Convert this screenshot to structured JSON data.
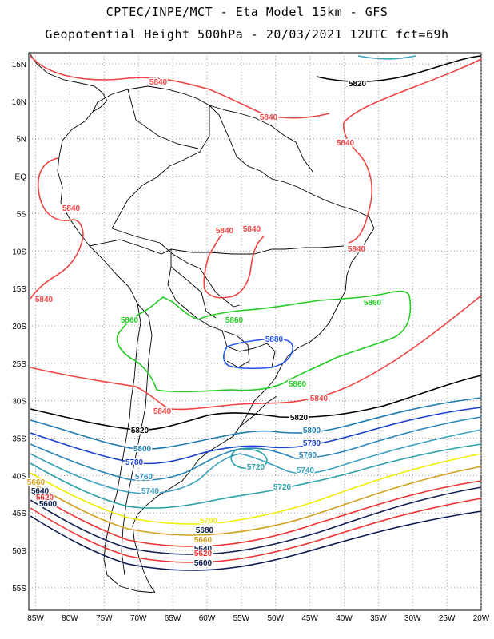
{
  "header": {
    "line1": "CPTEC/INPE/MCT -  Eta Model 15km - GFS",
    "line2": "Geopotential Height 500hPa - 20/03/2021 12UTC fct=69h"
  },
  "axes": {
    "lat_labels": [
      "15N",
      "10N",
      "5N",
      "EQ",
      "5S",
      "10S",
      "15S",
      "20S",
      "25S",
      "30S",
      "35S",
      "40S",
      "45S",
      "50S",
      "55S"
    ],
    "lat_values": [
      15,
      10,
      5,
      0,
      -5,
      -10,
      -15,
      -20,
      -25,
      -30,
      -35,
      -40,
      -45,
      -50,
      -55
    ],
    "lon_labels": [
      "85W",
      "80W",
      "75W",
      "70W",
      "65W",
      "60W",
      "55W",
      "50W",
      "45W",
      "40W",
      "35W",
      "30W",
      "25W",
      "20W"
    ],
    "lon_values": [
      -85,
      -80,
      -75,
      -70,
      -65,
      -60,
      -55,
      -50,
      -45,
      -40,
      -35,
      -30,
      -25,
      -20
    ],
    "grid": true
  },
  "colors": {
    "c5880": "#2255ee",
    "c5860": "#22cc22",
    "c5840": "#ee4444",
    "c5820": "#000000",
    "c5800": "#1e7ab0",
    "c5780": "#1a3fcc",
    "c5760": "#2a86b8",
    "c5740": "#3aa0c0",
    "c5720": "#2aa0a8",
    "c5700": "#eeee00",
    "c5680": "#d4a020",
    "c5660": "#ee3333",
    "c5640": "#112255",
    "c5620": "#ee3333",
    "c5600": "#0a1a50"
  },
  "contour_labels": [
    {
      "text": "5820",
      "color": "c5820"
    },
    {
      "text": "5840",
      "color": "c5840"
    },
    {
      "text": "5840",
      "color": "c5840"
    },
    {
      "text": "5840",
      "color": "c5840"
    },
    {
      "text": "5840",
      "color": "c5840"
    },
    {
      "text": "5840",
      "color": "c5840"
    },
    {
      "text": "5840",
      "color": "c5840"
    },
    {
      "text": "5840",
      "color": "c5840"
    },
    {
      "text": "5840",
      "color": "c5840"
    },
    {
      "text": "5840",
      "color": "c5840"
    },
    {
      "text": "5840",
      "color": "c5840"
    },
    {
      "text": "5860",
      "color": "c5860"
    },
    {
      "text": "5860",
      "color": "c5860"
    },
    {
      "text": "5860",
      "color": "c5860"
    },
    {
      "text": "5860",
      "color": "c5860"
    },
    {
      "text": "5880",
      "color": "c5880"
    },
    {
      "text": "5820",
      "color": "c5820"
    },
    {
      "text": "5820",
      "color": "c5820"
    },
    {
      "text": "5800",
      "color": "c5800"
    },
    {
      "text": "5800",
      "color": "c5800"
    },
    {
      "text": "5780",
      "color": "c5780"
    },
    {
      "text": "5780",
      "color": "c5780"
    },
    {
      "text": "5760",
      "color": "c5760"
    },
    {
      "text": "5760",
      "color": "c5760"
    },
    {
      "text": "5740",
      "color": "c5740"
    },
    {
      "text": "5740",
      "color": "c5740"
    },
    {
      "text": "5720",
      "color": "c5720"
    },
    {
      "text": "5720",
      "color": "c5720"
    },
    {
      "text": "5700",
      "color": "c5700"
    },
    {
      "text": "5680",
      "color": "c5600"
    },
    {
      "text": "5660",
      "color": "c5680"
    },
    {
      "text": "5640",
      "color": "c5640"
    },
    {
      "text": "5620",
      "color": "c5620"
    },
    {
      "text": "5600",
      "color": "c5600"
    },
    {
      "text": "5660",
      "color": "c5680"
    },
    {
      "text": "5640",
      "color": "c5640"
    },
    {
      "text": "5620",
      "color": "c5620"
    },
    {
      "text": "5600",
      "color": "c5600"
    }
  ]
}
